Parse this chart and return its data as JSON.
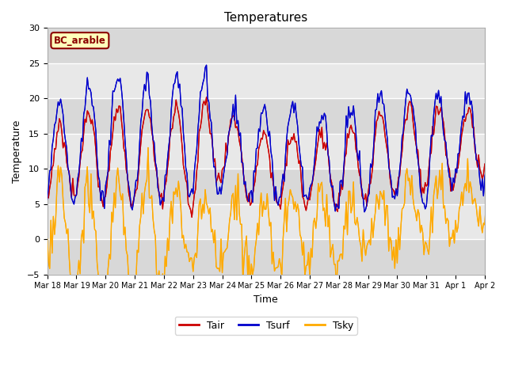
{
  "title": "Temperatures",
  "xlabel": "Time",
  "ylabel": "Temperature",
  "ylim": [
    -5,
    30
  ],
  "site_label": "BC_arable",
  "legend_labels": [
    "Tair",
    "Tsurf",
    "Tsky"
  ],
  "line_colors": [
    "#cc0000",
    "#0000cc",
    "#ffaa00"
  ],
  "fig_bg": "#ffffff",
  "plot_bg": "#e8e8e8",
  "grid_color": "#ffffff",
  "tick_labels": [
    "Mar 18",
    "Mar 19",
    "Mar 20",
    "Mar 21",
    "Mar 22",
    "Mar 23",
    "Mar 24",
    "Mar 25",
    "Mar 26",
    "Mar 27",
    "Mar 28",
    "Mar 29",
    "Mar 30",
    "Mar 31",
    "Apr 1",
    "Apr 2"
  ],
  "tick_positions": [
    0,
    24,
    48,
    72,
    96,
    120,
    144,
    168,
    192,
    216,
    240,
    264,
    288,
    312,
    336,
    360
  ],
  "yticks": [
    -5,
    0,
    5,
    10,
    15,
    20,
    25,
    30
  ],
  "n_hours": 384
}
